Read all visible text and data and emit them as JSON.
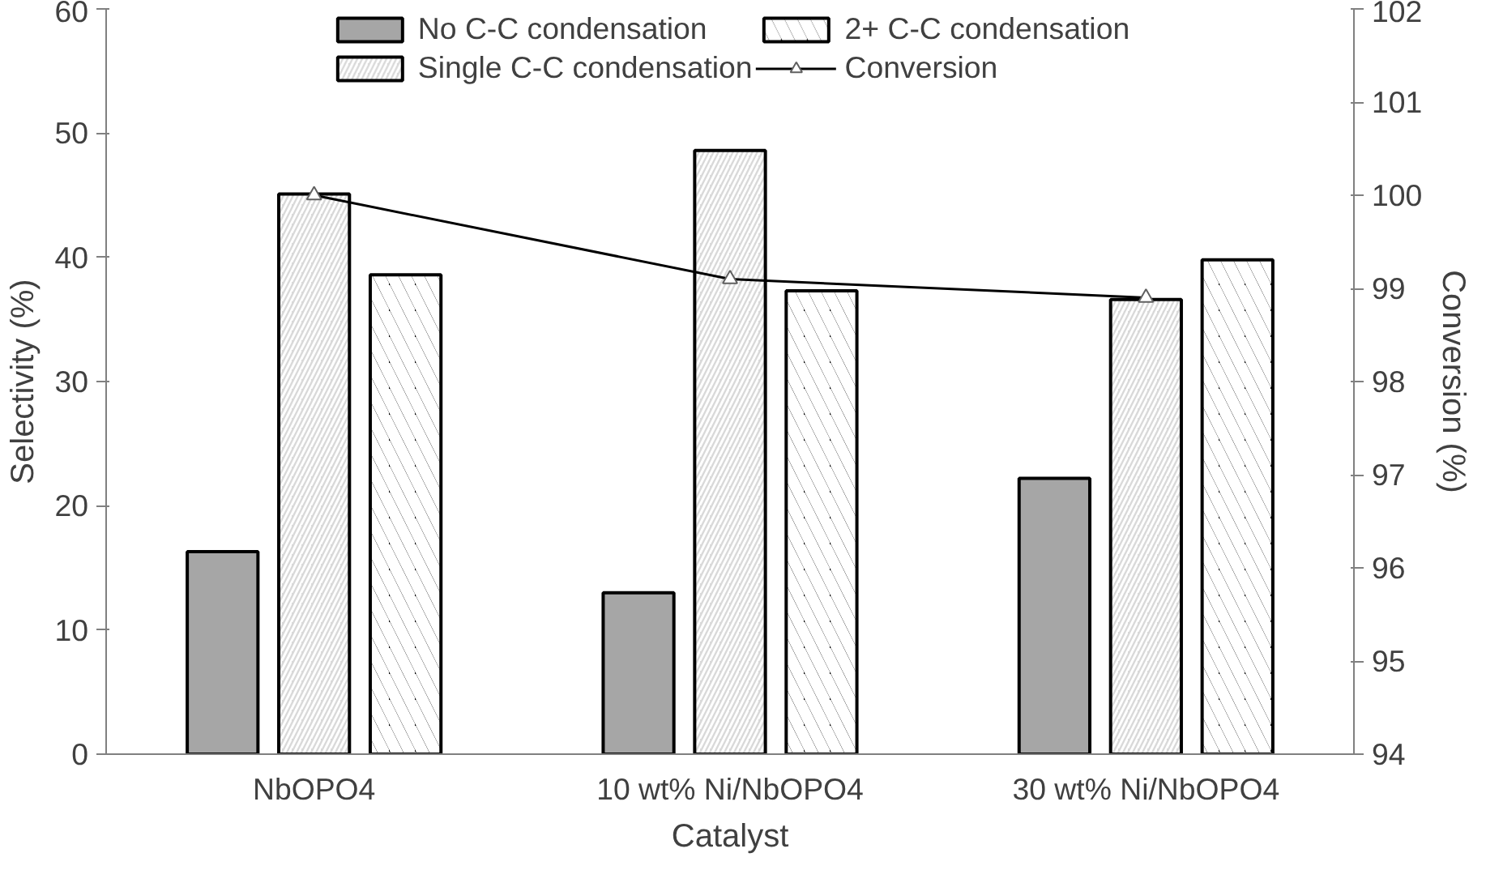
{
  "chart_data": {
    "type": "bar",
    "xlabel": "Catalyst",
    "ylabel": "Selectivity (%)",
    "y2label": "Conversion (%)",
    "categories": [
      "NbOPO4",
      "10 wt% Ni/NbOPO4",
      "30 wt% Ni/NbOPO4"
    ],
    "series": [
      {
        "name": "No C-C condensation",
        "color": "#a6a6a6",
        "values": [
          16.3,
          13.0,
          22.2
        ]
      },
      {
        "name": "Single C-C condensation",
        "color": "#d9d9d9",
        "values": [
          45.1,
          48.6,
          36.6
        ]
      },
      {
        "name": "2+ C-C condensation",
        "color": "#000000",
        "values": [
          38.6,
          37.3,
          39.8
        ]
      },
      {
        "name": "Conversion",
        "type": "line",
        "axis": "y2",
        "color": "#000000",
        "marker": "triangle",
        "values": [
          100.0,
          99.1,
          98.9
        ]
      }
    ],
    "ylim": [
      0,
      60
    ],
    "yticks": [
      0,
      10,
      20,
      30,
      40,
      50,
      60
    ],
    "y2lim": [
      94,
      102
    ],
    "y2ticks": [
      94,
      95,
      96,
      97,
      98,
      99,
      100,
      101,
      102
    ],
    "grid": false,
    "legend": "top"
  }
}
